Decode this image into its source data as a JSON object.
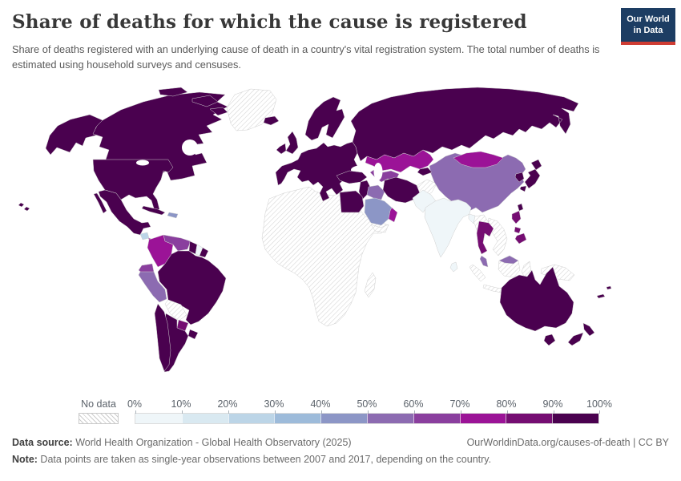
{
  "header": {
    "title": "Share of deaths for which the cause is registered",
    "subtitle": "Share of deaths registered with an underlying cause of death in a country's vital registration system. The total number of deaths is estimated using household surveys and censuses.",
    "logo_line1": "Our World",
    "logo_line2": "in Data"
  },
  "legend": {
    "no_data_label": "No data",
    "tick_labels": [
      "0%",
      "10%",
      "20%",
      "30%",
      "40%",
      "50%",
      "60%",
      "70%",
      "80%",
      "90%",
      "100%"
    ],
    "bins": [
      {
        "bin": "b0",
        "label": "0-10%"
      },
      {
        "bin": "b1",
        "label": "10-20%"
      },
      {
        "bin": "b2",
        "label": "20-30%"
      },
      {
        "bin": "b3",
        "label": "30-40%"
      },
      {
        "bin": "b4",
        "label": "40-50%"
      },
      {
        "bin": "b5",
        "label": "50-60%"
      },
      {
        "bin": "b6",
        "label": "60-70%"
      },
      {
        "bin": "b7",
        "label": "70-80%"
      },
      {
        "bin": "b8",
        "label": "80-90%"
      },
      {
        "bin": "b9",
        "label": "90-100%"
      }
    ]
  },
  "map": {
    "bin_colors": {
      "b0": "#eff6f9",
      "b1": "#d9e9f1",
      "b2": "#bcd5e7",
      "b3": "#9dbbda",
      "b4": "#8c96c6",
      "b5": "#8c6bb1",
      "b6": "#8a3f9e",
      "b7": "#9b1397",
      "b8": "#750d72",
      "b9": "#4a014f"
    },
    "regions": {
      "alaska": "b9",
      "canada": "b9",
      "arctic-islands": "b9",
      "usa": "b9",
      "hawaii": "b9",
      "mexico": "b9",
      "cuba": "b9",
      "costa-rica-panama": "b9",
      "guyana": "b9",
      "french-guiana": "b9",
      "brazil": "b9",
      "chile": "b9",
      "argentina": "b9",
      "uruguay": "b9",
      "iceland": "b9",
      "uk": "b9",
      "ireland": "b9",
      "scandinavia": "b9",
      "europe": "b9",
      "russia": "b9",
      "turkey": "b9",
      "levant": "b9",
      "iran": "b9",
      "egypt": "b9",
      "south-africa": "b9",
      "kyrgyzstan-tajikistan": "b9",
      "south-korea": "b9",
      "japan": "b9",
      "taiwan": "b9",
      "australia": "b9",
      "tasmania": "b9",
      "new-zealand": "b9",
      "pacific-islands": "b9",
      "thailand": "b8",
      "philippines": "b8",
      "paraguay": "b8",
      "kazakhstan": "b7",
      "mongolia": "b7",
      "colombia": "b7",
      "oman": "b7",
      "nicaragua": "b7",
      "venezuela": "b6",
      "ecuador": "b6",
      "uzbekistan-turkmenistan": "b6",
      "china": "b5",
      "malaysia-peninsula": "b5",
      "malaysia-borneo": "b5",
      "iraq": "b5",
      "peru": "b5",
      "saudi-arabia": "b4",
      "hispaniola": "b4",
      "morocco": "b2",
      "tunisia": "b2",
      "guatemala": "b2",
      "india": "b0",
      "pakistan": "b0",
      "bangladesh": "b0",
      "sri-lanka": "b0",
      "suriname": "b0",
      "greenland": "nodata",
      "africa": "nodata",
      "madagascar": "nodata",
      "bolivia": "nodata",
      "myanmar": "nodata",
      "vietnam-laos-cambodia": "nodata",
      "sumatra": "nodata",
      "java": "nodata",
      "borneo": "nodata",
      "sulawesi": "nodata",
      "new-guinea": "nodata",
      "afghanistan": "nodata",
      "north-korea": "nodata",
      "yemen": "nodata"
    }
  },
  "chart_data": {
    "type": "heatmap",
    "subtype": "world-choropleth",
    "title": "Share of deaths for which the cause is registered",
    "unit": "%",
    "legend_position": "bottom",
    "legend_bins": [
      "0-10%",
      "10-20%",
      "20-30%",
      "30-40%",
      "40-50%",
      "50-60%",
      "60-70%",
      "70-80%",
      "80-90%",
      "90-100%",
      "No data"
    ],
    "values_by_country": {
      "United States": "90-100%",
      "Canada": "90-100%",
      "Mexico": "90-100%",
      "Cuba": "90-100%",
      "Costa Rica / Panama": "90-100%",
      "Brazil": "90-100%",
      "Chile": "90-100%",
      "Argentina": "90-100%",
      "Uruguay": "90-100%",
      "Guyana": "90-100%",
      "Europe (incl. UK, France, Germany, Spain, Italy, Scandinavia)": "90-100%",
      "Iceland": "90-100%",
      "Russia": "90-100%",
      "Turkey": "90-100%",
      "Iran": "90-100%",
      "Egypt": "90-100%",
      "South Africa": "90-100%",
      "South Korea": "90-100%",
      "Japan": "90-100%",
      "Australia": "90-100%",
      "New Zealand": "90-100%",
      "Thailand": "80-90%",
      "Philippines": "80-90%",
      "Paraguay": "80-90%",
      "Kazakhstan": "70-80%",
      "Mongolia": "70-80%",
      "Colombia": "70-80%",
      "Oman": "70-80%",
      "Nicaragua": "70-80%",
      "Venezuela": "60-70%",
      "Ecuador": "60-70%",
      "Uzbekistan / Turkmenistan": "60-70%",
      "China": "50-60%",
      "Malaysia": "50-60%",
      "Iraq": "50-60%",
      "Peru": "50-60%",
      "Saudi Arabia": "40-50%",
      "Dominican Republic / Haiti": "40-50%",
      "Morocco": "20-30%",
      "Tunisia": "20-30%",
      "Guatemala": "20-30%",
      "India": "0-10%",
      "Pakistan": "0-10%",
      "Bangladesh": "0-10%",
      "Sri Lanka": "0-10%",
      "Suriname": "0-10%",
      "Most of Africa": "No data",
      "Greenland": "No data",
      "Bolivia": "No data",
      "Afghanistan": "No data",
      "Myanmar": "No data",
      "Vietnam / Laos / Cambodia": "No data",
      "Indonesia": "No data",
      "Papua New Guinea": "No data",
      "North Korea": "No data",
      "Yemen": "No data",
      "Madagascar": "No data"
    }
  },
  "footer": {
    "source_label": "Data source:",
    "source_text": " World Health Organization - Global Health Observatory (2025)",
    "link_text": "OurWorldinData.org/causes-of-death | CC BY",
    "note_label": "Note:",
    "note_text": " Data points are taken as single-year observations between 2007 and 2017, depending on the country."
  }
}
